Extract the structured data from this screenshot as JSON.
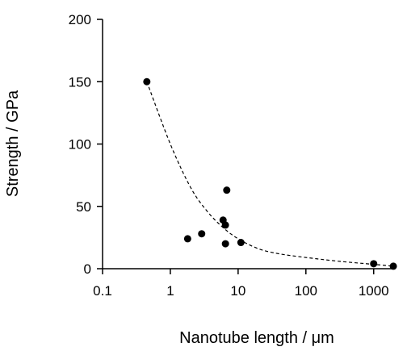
{
  "chart_data": {
    "type": "scatter",
    "xlabel": "Nanotube length / μm",
    "ylabel": "Strength / GPa",
    "xscale": "log",
    "xlim": [
      0.1,
      2000
    ],
    "ylim": [
      0,
      200
    ],
    "x_ticks": [
      {
        "value": 0.1,
        "label": "0.1"
      },
      {
        "value": 1,
        "label": "1"
      },
      {
        "value": 10,
        "label": "10"
      },
      {
        "value": 100,
        "label": "100"
      },
      {
        "value": 1000,
        "label": "1000"
      }
    ],
    "y_ticks": [
      {
        "value": 0,
        "label": "0"
      },
      {
        "value": 50,
        "label": "50"
      },
      {
        "value": 100,
        "label": "100"
      },
      {
        "value": 150,
        "label": "150"
      },
      {
        "value": 200,
        "label": "200"
      }
    ],
    "series": [
      {
        "marker_color": "#000000",
        "points": [
          {
            "x": 0.45,
            "y": 150
          },
          {
            "x": 1.8,
            "y": 24
          },
          {
            "x": 2.9,
            "y": 28
          },
          {
            "x": 6.0,
            "y": 39
          },
          {
            "x": 6.5,
            "y": 35
          },
          {
            "x": 6.8,
            "y": 63
          },
          {
            "x": 6.5,
            "y": 20
          },
          {
            "x": 11,
            "y": 21
          },
          {
            "x": 1000,
            "y": 4
          },
          {
            "x": 1950,
            "y": 2
          }
        ]
      }
    ],
    "trend_line": {
      "style": "dashed",
      "color": "#000000",
      "points": [
        {
          "x": 0.45,
          "y": 150
        },
        {
          "x": 1,
          "y": 100
        },
        {
          "x": 2,
          "y": 65
        },
        {
          "x": 3.5,
          "y": 46
        },
        {
          "x": 6,
          "y": 33
        },
        {
          "x": 10,
          "y": 24
        },
        {
          "x": 20,
          "y": 16
        },
        {
          "x": 40,
          "y": 12
        },
        {
          "x": 100,
          "y": 9
        },
        {
          "x": 300,
          "y": 6
        },
        {
          "x": 1000,
          "y": 3.5
        },
        {
          "x": 1950,
          "y": 2
        }
      ]
    },
    "grid": false,
    "legend": "none"
  }
}
